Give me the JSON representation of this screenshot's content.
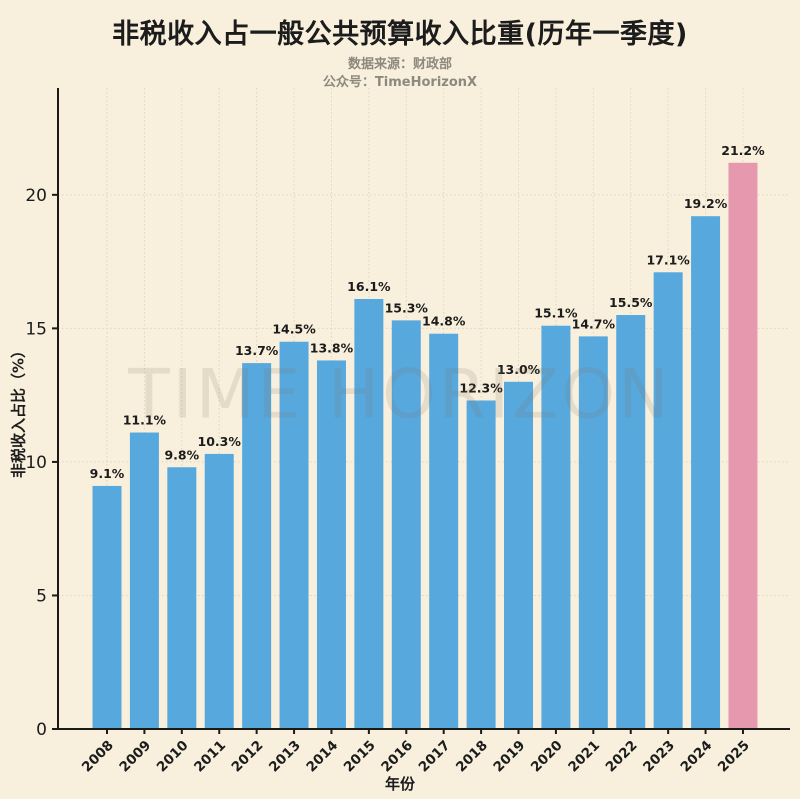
{
  "figure": {
    "title": "非税收入占一般公共预算收入比重(历年一季度)",
    "subtitle_source": "数据来源：财政部",
    "subtitle_account": "公众号：TimeHorizonX",
    "watermark": "TIME HORIZON"
  },
  "colors": {
    "background": "#f8f0dd",
    "bar": "#57a9dd",
    "bar_highlight": "#e698ae",
    "axis": "#1a1a1a",
    "grid": "#ded5bc",
    "tick_text": "#1c1c1c",
    "value_label_text": "#1c1c1c",
    "subtitle_text": "#8d897f"
  },
  "chart_data": {
    "type": "bar",
    "title": "非税收入占一般公共预算收入比重(历年一季度)",
    "xlabel": "年份",
    "ylabel": "非税收入占比（%）",
    "categories": [
      "2008",
      "2009",
      "2010",
      "2011",
      "2012",
      "2013",
      "2014",
      "2015",
      "2016",
      "2017",
      "2018",
      "2019",
      "2020",
      "2021",
      "2022",
      "2023",
      "2024",
      "2025"
    ],
    "values": [
      9.1,
      11.1,
      9.8,
      10.3,
      13.7,
      14.5,
      13.8,
      16.1,
      15.3,
      14.8,
      12.3,
      13.0,
      15.1,
      14.7,
      15.5,
      17.1,
      19.2,
      21.2
    ],
    "value_labels": [
      "9.1%",
      "11.1%",
      "9.8%",
      "10.3%",
      "13.7%",
      "14.5%",
      "13.8%",
      "16.1%",
      "15.3%",
      "14.8%",
      "12.3%",
      "13.0%",
      "15.1%",
      "14.7%",
      "15.5%",
      "17.1%",
      "19.2%",
      "21.2%"
    ],
    "highlight_index": 17,
    "highlight_category": "2025",
    "ylim": [
      0,
      24
    ],
    "yticks": [
      0,
      5,
      10,
      15,
      20
    ],
    "grid": true,
    "grid_style": "dotted",
    "legend": false,
    "x_tick_rotation_deg": 45
  }
}
